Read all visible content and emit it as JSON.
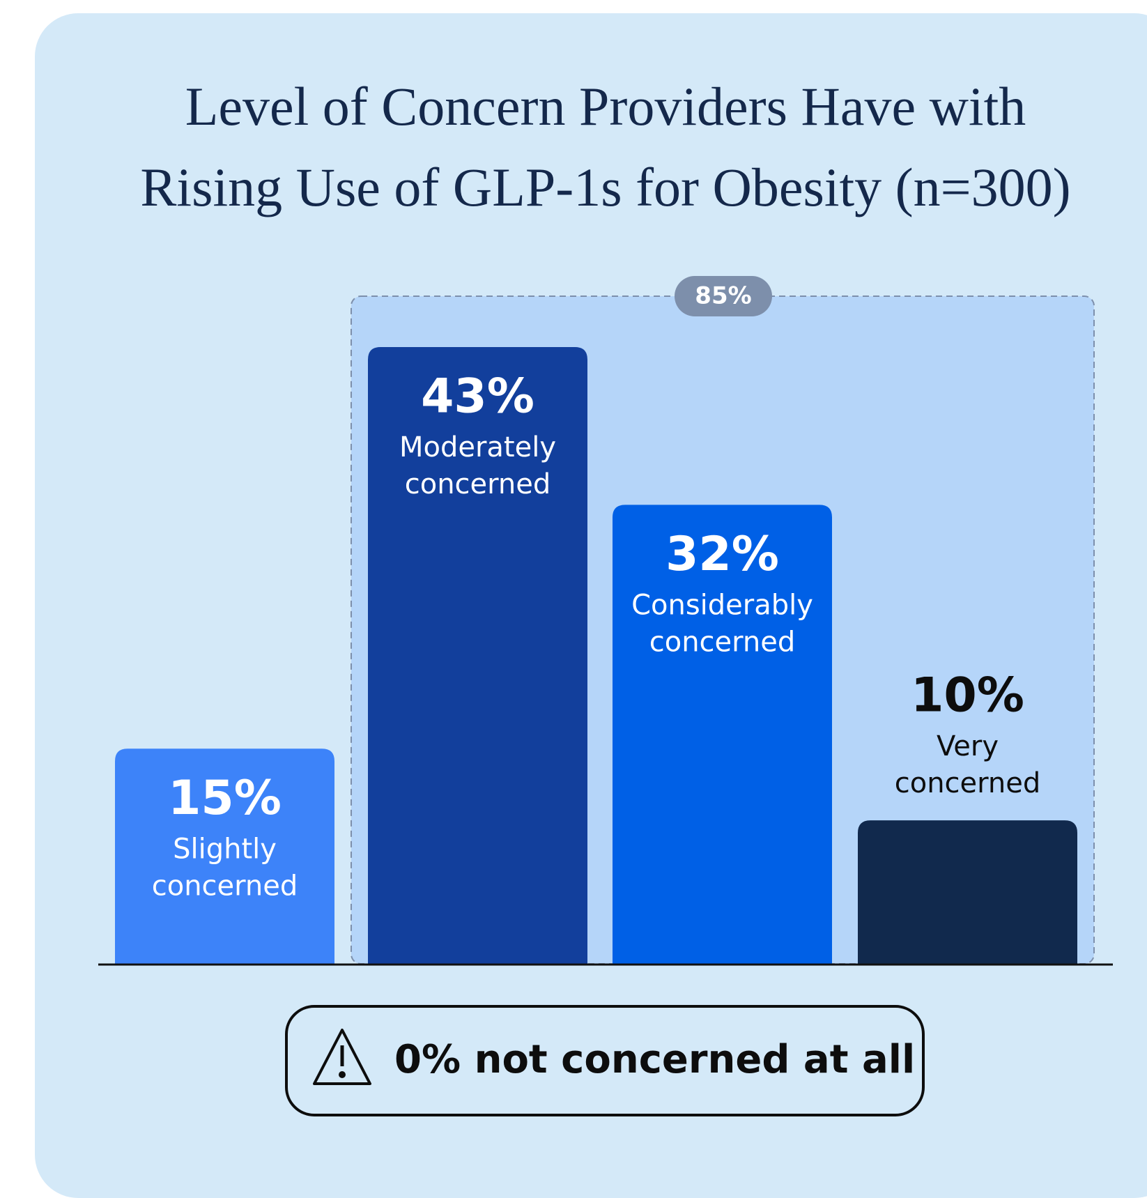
{
  "chart_data": {
    "type": "bar",
    "title": "Level of Concern Providers Have with Rising Use of GLP-1s for Obesity (n=300)",
    "categories": [
      "Slightly concerned",
      "Moderately concerned",
      "Considerably concerned",
      "Very concerned"
    ],
    "values": [
      15,
      43,
      32,
      10
    ],
    "value_labels": [
      "15%",
      "43%",
      "32%",
      "10%"
    ],
    "colors": [
      "#3d83f9",
      "#123f9c",
      "#0060e6",
      "#11294d"
    ],
    "bracket_label": "85%",
    "note": "0% not concerned at all"
  }
}
